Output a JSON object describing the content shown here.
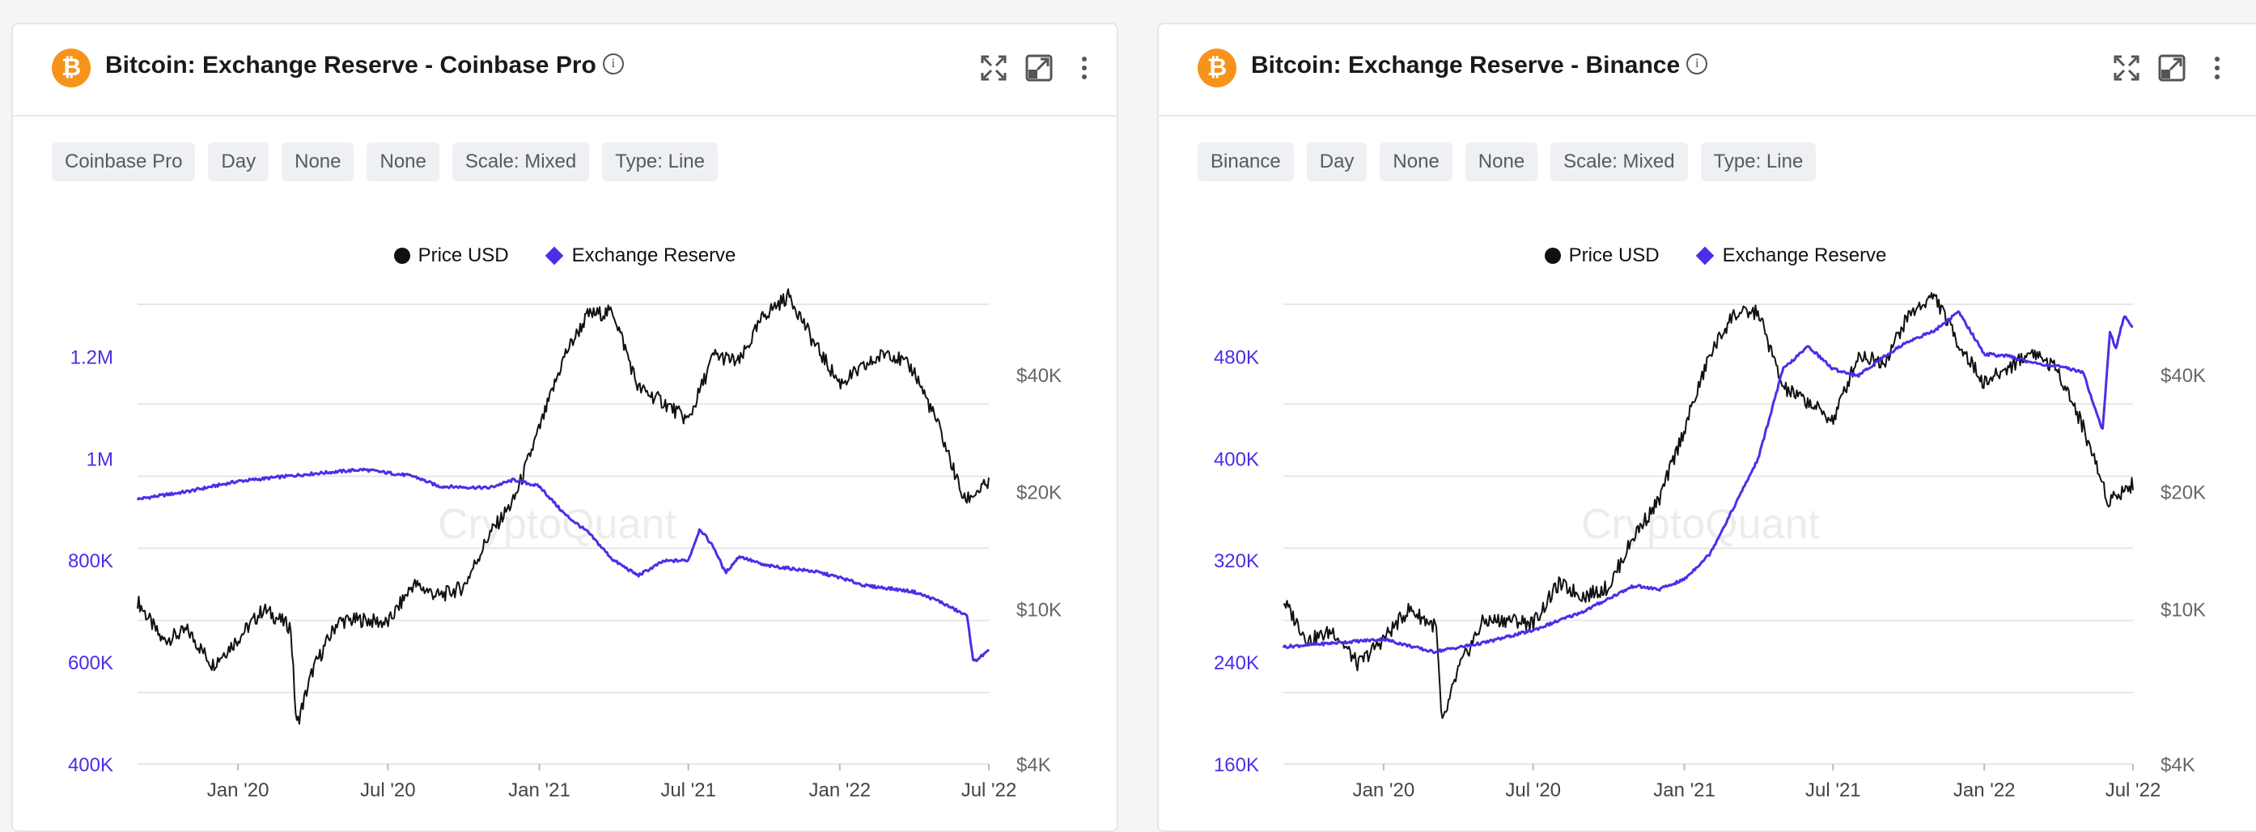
{
  "colors": {
    "price": "#111111",
    "reserve": "#4b2ee8",
    "brand": "#f7931a",
    "grid": "#e6e6e6",
    "left_axis": "#4b2ee8",
    "right_axis": "#666666",
    "x_axis": "#444444"
  },
  "panels": [
    {
      "id": "coinbase",
      "icon_glyph": "₿",
      "title": "Bitcoin: Exchange Reserve - Coinbase Pro",
      "info_glyph": "i",
      "filters": [
        "Coinbase Pro",
        "Day",
        "None",
        "None",
        "Scale: Mixed",
        "Type: Line"
      ],
      "legend": [
        "Price USD",
        "Exchange Reserve"
      ],
      "watermark": "CryptoQuant"
    },
    {
      "id": "binance",
      "icon_glyph": "₿",
      "title": "Bitcoin: Exchange Reserve - Binance",
      "info_glyph": "i",
      "filters": [
        "Binance",
        "Day",
        "None",
        "None",
        "Scale: Mixed",
        "Type: Line"
      ],
      "legend": [
        "Price USD",
        "Exchange Reserve"
      ],
      "watermark": "CryptoQuant"
    }
  ],
  "chart_data": [
    {
      "type": "line",
      "title": "Bitcoin: Exchange Reserve - Coinbase Pro",
      "x_ticks": [
        "Jan '20",
        "Jul '20",
        "Jan '21",
        "Jul '21",
        "Jan '22",
        "Jul '22"
      ],
      "x_range": [
        "2019-09",
        "2022-07"
      ],
      "left_axis": {
        "label": "",
        "ticks": [
          "400K",
          "600K",
          "800K",
          "1M",
          "1.2M"
        ],
        "range": [
          400000,
          1350000
        ]
      },
      "right_axis": {
        "label": "",
        "scale": "log",
        "ticks": [
          "$4K",
          "$10K",
          "$20K",
          "$40K"
        ],
        "range": [
          4000,
          70000
        ]
      },
      "grid": true,
      "legend_position": "top-center",
      "series": [
        {
          "name": "Price USD",
          "axis": "right",
          "color": "#111111",
          "points": [
            [
              "2019-09",
              10500
            ],
            [
              "2019-10",
              8300
            ],
            [
              "2019-11",
              8800
            ],
            [
              "2019-12",
              7200
            ],
            [
              "2020-01",
              8400
            ],
            [
              "2020-02",
              10000
            ],
            [
              "2020-03-05",
              9000
            ],
            [
              "2020-03-12",
              5000
            ],
            [
              "2020-04",
              7000
            ],
            [
              "2020-05",
              9300
            ],
            [
              "2020-06",
              9400
            ],
            [
              "2020-07",
              9200
            ],
            [
              "2020-08",
              11600
            ],
            [
              "2020-09",
              10800
            ],
            [
              "2020-10",
              11400
            ],
            [
              "2020-11",
              15500
            ],
            [
              "2020-12",
              19000
            ],
            [
              "2021-01",
              29000
            ],
            [
              "2021-02",
              45000
            ],
            [
              "2021-03",
              57000
            ],
            [
              "2021-04",
              58000
            ],
            [
              "2021-05",
              37000
            ],
            [
              "2021-06",
              34000
            ],
            [
              "2021-07",
              30500
            ],
            [
              "2021-08",
              45000
            ],
            [
              "2021-09",
              43000
            ],
            [
              "2021-10",
              57000
            ],
            [
              "2021-11",
              64000
            ],
            [
              "2021-12",
              48000
            ],
            [
              "2022-01",
              38000
            ],
            [
              "2022-02",
              42000
            ],
            [
              "2022-03",
              46000
            ],
            [
              "2022-04",
              41000
            ],
            [
              "2022-05",
              29500
            ],
            [
              "2022-06",
              19000
            ],
            [
              "2022-07",
              21000
            ]
          ]
        },
        {
          "name": "Exchange Reserve",
          "axis": "left",
          "color": "#4b2ee8",
          "points": [
            [
              "2019-09",
              920000
            ],
            [
              "2019-11",
              935000
            ],
            [
              "2020-01",
              955000
            ],
            [
              "2020-04",
              970000
            ],
            [
              "2020-06",
              978000
            ],
            [
              "2020-08",
              965000
            ],
            [
              "2020-09",
              945000
            ],
            [
              "2020-11",
              942000
            ],
            [
              "2020-12",
              958000
            ],
            [
              "2021-01",
              945000
            ],
            [
              "2021-02",
              890000
            ],
            [
              "2021-03",
              855000
            ],
            [
              "2021-04",
              800000
            ],
            [
              "2021-05",
              770000
            ],
            [
              "2021-06",
              798000
            ],
            [
              "2021-07",
              800000
            ],
            [
              "2021-07-15",
              862000
            ],
            [
              "2021-08",
              825000
            ],
            [
              "2021-08-15",
              775000
            ],
            [
              "2021-09",
              808000
            ],
            [
              "2021-10",
              790000
            ],
            [
              "2021-11",
              784000
            ],
            [
              "2021-12",
              778000
            ],
            [
              "2022-01",
              766000
            ],
            [
              "2022-02",
              750000
            ],
            [
              "2022-03",
              745000
            ],
            [
              "2022-04",
              738000
            ],
            [
              "2022-05",
              720000
            ],
            [
              "2022-06-05",
              690000
            ],
            [
              "2022-06-12",
              600000
            ],
            [
              "2022-07",
              622000
            ]
          ]
        }
      ]
    },
    {
      "type": "line",
      "title": "Bitcoin: Exchange Reserve - Binance",
      "x_ticks": [
        "Jan '20",
        "Jul '20",
        "Jan '21",
        "Jul '21",
        "Jan '22",
        "Jul '22"
      ],
      "x_range": [
        "2019-09",
        "2022-07"
      ],
      "left_axis": {
        "label": "",
        "ticks": [
          "160K",
          "240K",
          "320K",
          "400K",
          "480K"
        ],
        "range": [
          160000,
          540000
        ]
      },
      "right_axis": {
        "label": "",
        "scale": "log",
        "ticks": [
          "$4K",
          "$10K",
          "$20K",
          "$40K"
        ],
        "range": [
          4000,
          70000
        ]
      },
      "grid": true,
      "legend_position": "top-center",
      "series": [
        {
          "name": "Price USD",
          "axis": "right",
          "color": "#111111",
          "points": [
            [
              "2019-09",
              10500
            ],
            [
              "2019-10",
              8300
            ],
            [
              "2019-11",
              8800
            ],
            [
              "2019-12",
              7200
            ],
            [
              "2020-01",
              8400
            ],
            [
              "2020-02",
              10000
            ],
            [
              "2020-03-05",
              9000
            ],
            [
              "2020-03-12",
              5000
            ],
            [
              "2020-04",
              7000
            ],
            [
              "2020-05",
              9300
            ],
            [
              "2020-06",
              9400
            ],
            [
              "2020-07",
              9200
            ],
            [
              "2020-08",
              11600
            ],
            [
              "2020-09",
              10800
            ],
            [
              "2020-10",
              11400
            ],
            [
              "2020-11",
              15500
            ],
            [
              "2020-12",
              19000
            ],
            [
              "2021-01",
              29000
            ],
            [
              "2021-02",
              45000
            ],
            [
              "2021-03",
              57000
            ],
            [
              "2021-04",
              58000
            ],
            [
              "2021-05",
              37000
            ],
            [
              "2021-06",
              34000
            ],
            [
              "2021-07",
              30500
            ],
            [
              "2021-08",
              45000
            ],
            [
              "2021-09",
              43000
            ],
            [
              "2021-10",
              57000
            ],
            [
              "2021-11",
              64000
            ],
            [
              "2021-12",
              48000
            ],
            [
              "2022-01",
              38000
            ],
            [
              "2022-02",
              42000
            ],
            [
              "2022-03",
              46000
            ],
            [
              "2022-04",
              41000
            ],
            [
              "2022-05",
              29500
            ],
            [
              "2022-06",
              19000
            ],
            [
              "2022-07",
              21000
            ]
          ]
        },
        {
          "name": "Exchange Reserve",
          "axis": "left",
          "color": "#4b2ee8",
          "points": [
            [
              "2019-09",
              252000
            ],
            [
              "2019-11",
              255000
            ],
            [
              "2020-01",
              258000
            ],
            [
              "2020-03",
              248000
            ],
            [
              "2020-05",
              255000
            ],
            [
              "2020-07",
              265000
            ],
            [
              "2020-09",
              280000
            ],
            [
              "2020-10",
              290000
            ],
            [
              "2020-11",
              300000
            ],
            [
              "2020-12",
              297000
            ],
            [
              "2021-01",
              305000
            ],
            [
              "2021-02",
              325000
            ],
            [
              "2021-03",
              360000
            ],
            [
              "2021-04",
              400000
            ],
            [
              "2021-05",
              470000
            ],
            [
              "2021-06",
              488000
            ],
            [
              "2021-07",
              470000
            ],
            [
              "2021-08",
              465000
            ],
            [
              "2021-09",
              480000
            ],
            [
              "2021-10",
              492000
            ],
            [
              "2021-11",
              500000
            ],
            [
              "2021-12",
              515000
            ],
            [
              "2022-01",
              482000
            ],
            [
              "2022-02",
              480000
            ],
            [
              "2022-03",
              475000
            ],
            [
              "2022-04",
              472000
            ],
            [
              "2022-05",
              468000
            ],
            [
              "2022-05-25",
              422000
            ],
            [
              "2022-06-03",
              500000
            ],
            [
              "2022-06-10",
              485000
            ],
            [
              "2022-06-20",
              512000
            ],
            [
              "2022-07",
              503000
            ]
          ]
        }
      ]
    }
  ]
}
